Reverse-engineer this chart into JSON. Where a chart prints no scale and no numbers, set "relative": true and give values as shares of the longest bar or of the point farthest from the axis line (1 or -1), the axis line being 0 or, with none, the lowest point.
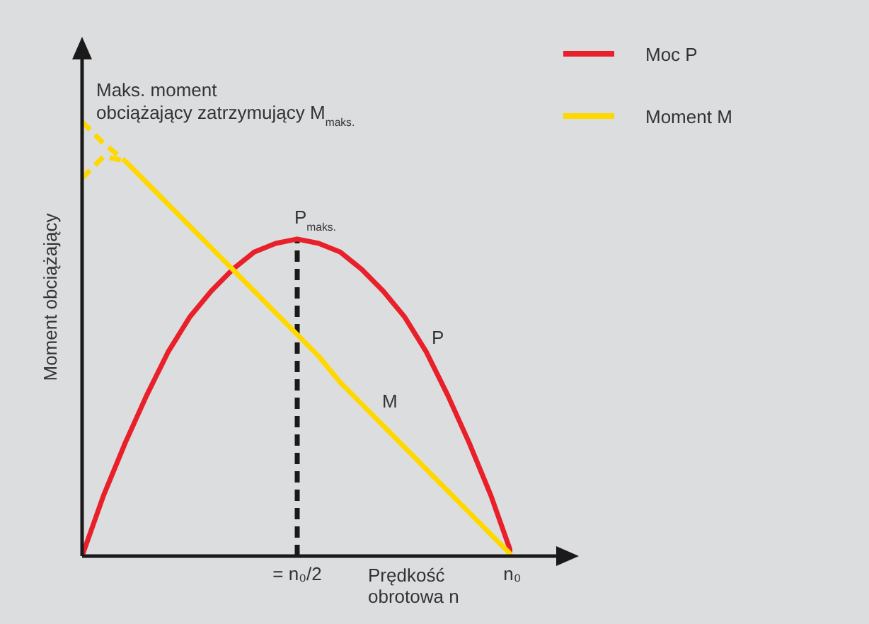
{
  "chart_data": {
    "type": "line",
    "relative": true,
    "xlabel": "Prędkość obrotowa n",
    "ylabel": "Moment obciążający",
    "legend": "top right",
    "categories": [
      null,
      null,
      null,
      null,
      null,
      null,
      null,
      null,
      null,
      null,
      "= n₀/2",
      null,
      null,
      null,
      null,
      null,
      null,
      null,
      null,
      null,
      "n₀"
    ],
    "annotations": [
      "Maks. moment obciążający zatrzymujący M$_{maks.}$",
      "P$_{maks.}$",
      "P",
      "M"
    ],
    "ref_lines": [
      {
        "axis": "x",
        "value": "= n₀/2",
        "color": "#1a1a1a",
        "line_style": "dashed"
      }
    ],
    "series": [
      {
        "name": "Moc P",
        "color": "#e8202a",
        "values": [
          0,
          0.14,
          0.26,
          0.37,
          0.47,
          0.55,
          0.61,
          0.66,
          0.7,
          0.72,
          0.73,
          0.72,
          0.7,
          0.66,
          0.61,
          0.55,
          0.47,
          0.37,
          0.26,
          0.14,
          0
        ]
      },
      {
        "name": "Moment M",
        "color": "#ffd800",
        "values": [
          null,
          null,
          0.91,
          0.86,
          0.81,
          0.76,
          0.71,
          0.66,
          0.61,
          0.56,
          0.51,
          0.46,
          0.4,
          0.35,
          0.3,
          0.25,
          0.2,
          0.15,
          0.1,
          0.05,
          0
        ]
      },
      {
        "color": "#ffd800",
        "line_style": "dashed",
        "values": [
          1,
          0.95,
          0.91,
          null,
          null,
          null,
          null,
          null,
          null,
          null,
          null,
          null,
          null,
          null,
          null,
          null,
          null,
          null,
          null,
          null,
          null
        ]
      },
      {
        "color": "#ffd800",
        "line_style": "dashed",
        "values": [
          0.87,
          0.92,
          0.91,
          null,
          null,
          null,
          null,
          null,
          null,
          null,
          null,
          null,
          null,
          null,
          null,
          null,
          null,
          null,
          null,
          null,
          null
        ]
      }
    ]
  }
}
